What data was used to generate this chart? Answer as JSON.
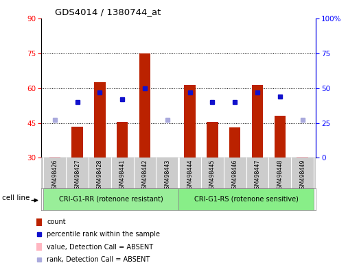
{
  "title": "GDS4014 / 1380744_at",
  "samples": [
    "GSM498426",
    "GSM498427",
    "GSM498428",
    "GSM498441",
    "GSM498442",
    "GSM498443",
    "GSM498444",
    "GSM498445",
    "GSM498446",
    "GSM498447",
    "GSM498448",
    "GSM498449"
  ],
  "count_values": [
    30.5,
    43.5,
    62.5,
    45.5,
    75.0,
    30.2,
    61.5,
    45.5,
    43.0,
    61.5,
    48.0,
    30.5
  ],
  "rank_values_pct": [
    27,
    40,
    47,
    42,
    50,
    27,
    47,
    40,
    40,
    47,
    44,
    27
  ],
  "absent_count_idx": [
    0,
    5
  ],
  "absent_rank_idx": [
    0,
    5,
    11
  ],
  "absent_count_last_idx": [
    11
  ],
  "ylim_left": [
    30,
    90
  ],
  "ylim_right": [
    0,
    100
  ],
  "yticks_left": [
    30,
    45,
    60,
    75,
    90
  ],
  "yticks_right": [
    0,
    25,
    50,
    75,
    100
  ],
  "bar_color": "#BB2200",
  "bar_absent_color": "#FFB6C1",
  "marker_color": "#1111CC",
  "marker_absent_color": "#AAAADD",
  "group1_name": "CRI-G1-RR (rotenone resistant)",
  "group2_name": "CRI-G1-RS (rotenone sensitive)",
  "group1_color": "#99EE99",
  "group2_color": "#88EE88",
  "cell_line_label": "cell line",
  "legend_items": [
    {
      "label": "count",
      "color": "#BB2200",
      "type": "bar"
    },
    {
      "label": "percentile rank within the sample",
      "color": "#1111CC",
      "type": "marker"
    },
    {
      "label": "value, Detection Call = ABSENT",
      "color": "#FFB6C1",
      "type": "bar"
    },
    {
      "label": "rank, Detection Call = ABSENT",
      "color": "#AAAADD",
      "type": "marker"
    }
  ]
}
